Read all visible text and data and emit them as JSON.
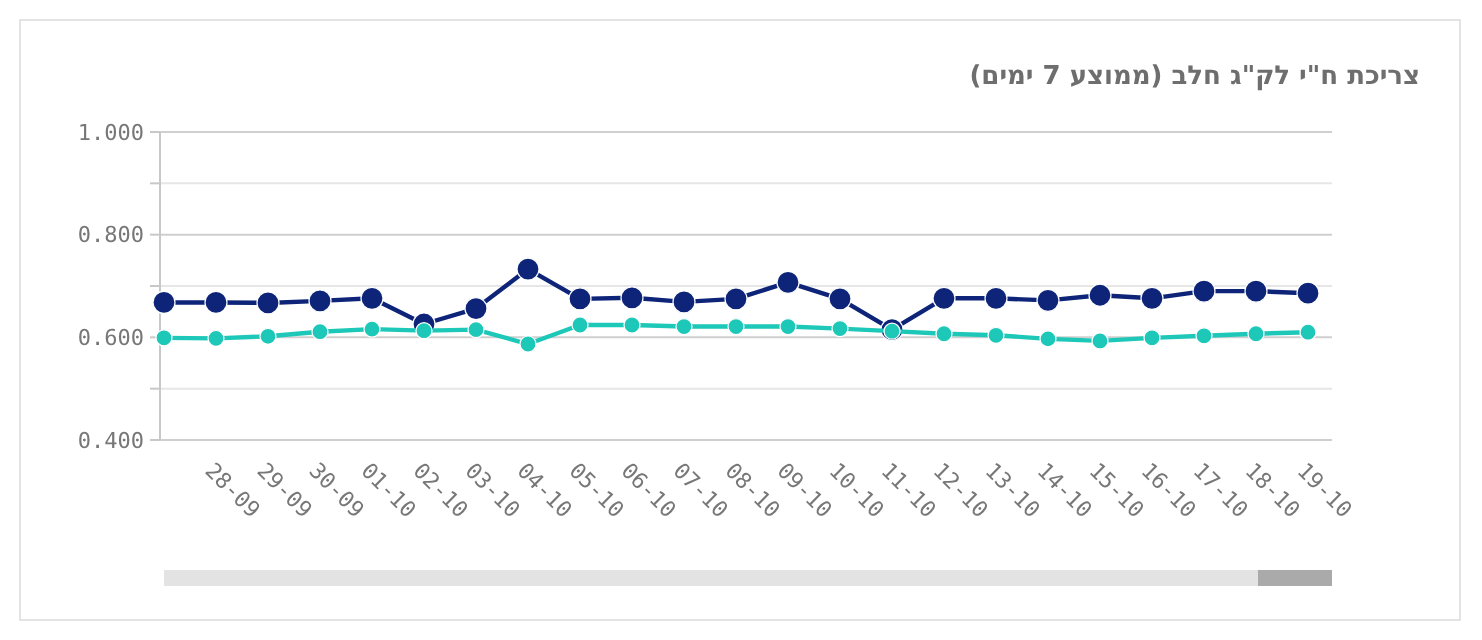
{
  "chart_data": {
    "type": "line",
    "title": "צריכת ח\"י לק\"ג חלב (ממוצע 7 ימים)",
    "categories": [
      null,
      "28-09",
      "29-09",
      "30-09",
      "01-10",
      "02-10",
      "03-10",
      "04-10",
      "05-10",
      "06-10",
      "07-10",
      "08-10",
      "09-10",
      "10-10",
      "11-10",
      "12-10",
      "13-10",
      "14-10",
      "15-10",
      "16-10",
      "17-10",
      "18-10",
      "19-10"
    ],
    "series": [
      {
        "color": "#0d2478",
        "values": [
          0.668,
          0.668,
          0.667,
          0.671,
          0.676,
          0.626,
          0.656,
          0.733,
          0.675,
          0.677,
          0.669,
          0.675,
          0.707,
          0.675,
          0.615,
          0.676,
          0.676,
          0.672,
          0.682,
          0.676,
          0.69,
          0.69,
          0.686
        ]
      },
      {
        "color": "#1ec8b8",
        "values": [
          0.599,
          0.598,
          0.602,
          0.611,
          0.616,
          0.613,
          0.615,
          0.587,
          0.624,
          0.624,
          0.621,
          0.621,
          0.621,
          0.617,
          0.612,
          0.607,
          0.604,
          0.597,
          0.593,
          0.599,
          0.603,
          0.607,
          0.61
        ]
      }
    ],
    "ylim": [
      0.4,
      1.0
    ],
    "yticks": [
      {
        "value": 0.4,
        "label": "0.400"
      },
      {
        "value": 0.5,
        "label": null
      },
      {
        "value": 0.6,
        "label": "0.600"
      },
      {
        "value": 0.7,
        "label": null
      },
      {
        "value": 0.8,
        "label": "0.800"
      },
      {
        "value": 0.9,
        "label": null
      },
      {
        "value": 1.0,
        "label": "1.000"
      }
    ],
    "grid": "y",
    "marker": "circle"
  }
}
